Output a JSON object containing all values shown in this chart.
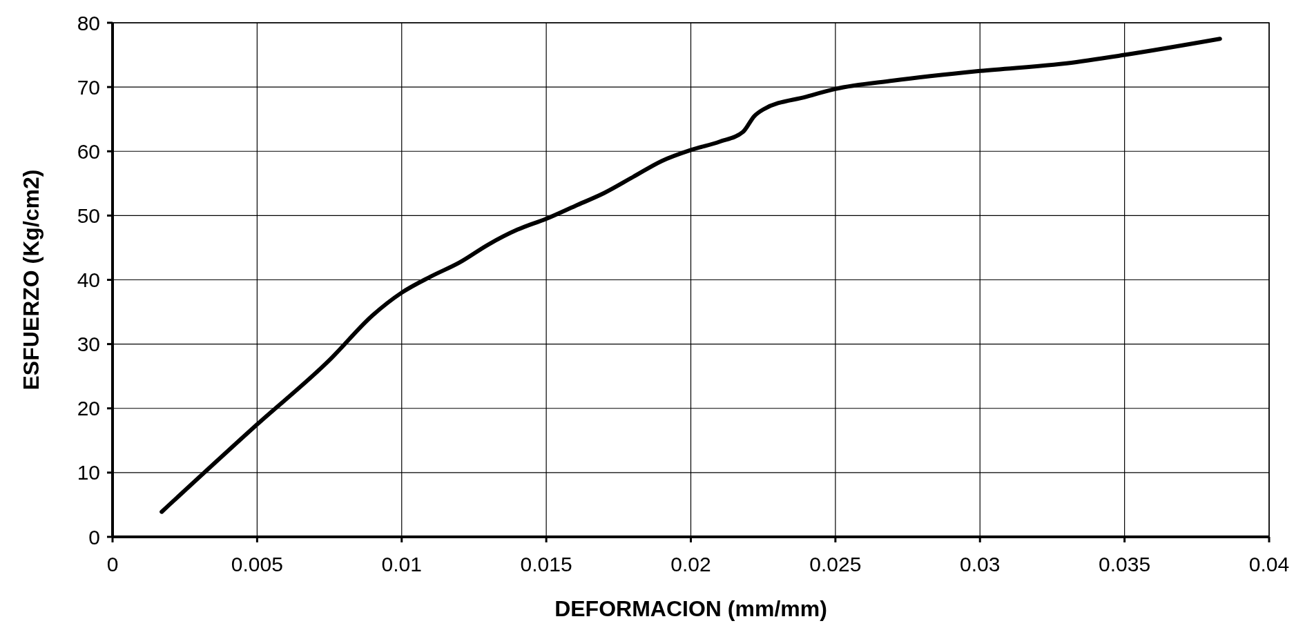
{
  "chart_data": {
    "type": "line",
    "xlabel": "DEFORMACION  (mm/mm)",
    "ylabel": "ESFUERZO  (Kg/cm2)",
    "xlim": [
      0,
      0.04
    ],
    "xticks": [
      0,
      0.005,
      0.01,
      0.015,
      0.02,
      0.025,
      0.03,
      0.035,
      0.04
    ],
    "ylim": [
      0,
      80
    ],
    "yticks": [
      0,
      10,
      20,
      30,
      40,
      50,
      60,
      70,
      80
    ],
    "grid": true,
    "marker": "none",
    "line_style": "solid",
    "series": [
      {
        "color": "#000000",
        "x": [
          0.0017,
          0.005,
          0.0075,
          0.009,
          0.01,
          0.011,
          0.012,
          0.013,
          0.014,
          0.015,
          0.016,
          0.017,
          0.018,
          0.019,
          0.02,
          0.021,
          0.0218,
          0.0222,
          0.0225,
          0.024,
          0.025,
          0.027,
          0.03,
          0.033,
          0.035,
          0.0383
        ],
        "values": [
          3.9,
          17.5,
          27.5,
          34.5,
          38,
          40.5,
          42.7,
          45.5,
          47.8,
          49.5,
          51.5,
          53.5,
          56,
          58.5,
          60.2,
          61.5,
          63,
          65.5,
          66.5,
          68.5,
          69.7,
          71,
          72.5,
          73.7,
          75,
          77.5
        ]
      }
    ]
  }
}
